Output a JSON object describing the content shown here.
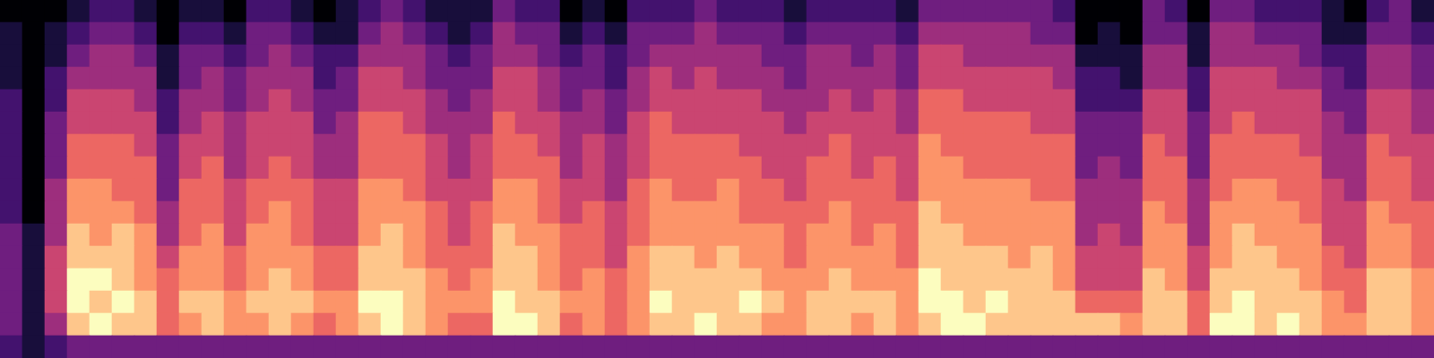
{
  "chart_data": {
    "type": "heatmap",
    "tick_labels": false,
    "cells": [
      [
        2,
        3,
        3,
        3,
        3,
        3,
        2,
        2,
        2,
        2,
        2,
        2,
        1,
        1,
        1,
        0
      ],
      [
        1,
        1,
        1,
        1,
        1,
        1,
        0,
        0,
        0,
        0,
        0,
        0,
        0,
        0,
        0,
        0
      ],
      [
        2,
        4,
        5,
        5,
        5,
        4,
        4,
        4,
        3,
        3,
        3,
        2,
        2,
        1,
        1,
        0
      ],
      [
        3,
        8,
        9,
        9,
        8,
        8,
        7,
        7,
        6,
        6,
        5,
        5,
        4,
        3,
        2,
        1
      ],
      [
        3,
        9,
        8,
        9,
        8,
        7,
        7,
        7,
        6,
        6,
        5,
        5,
        4,
        4,
        3,
        2
      ],
      [
        3,
        8,
        9,
        8,
        8,
        8,
        7,
        6,
        6,
        6,
        5,
        5,
        4,
        4,
        3,
        2
      ],
      [
        3,
        8,
        8,
        7,
        7,
        7,
        6,
        6,
        6,
        5,
        5,
        4,
        4,
        3,
        2,
        1
      ],
      [
        3,
        6,
        6,
        6,
        5,
        4,
        4,
        3,
        3,
        3,
        2,
        2,
        1,
        1,
        0,
        0
      ],
      [
        3,
        7,
        8,
        7,
        7,
        6,
        6,
        6,
        5,
        5,
        4,
        4,
        3,
        3,
        2,
        1
      ],
      [
        3,
        8,
        8,
        7,
        7,
        7,
        6,
        6,
        6,
        5,
        5,
        4,
        4,
        3,
        2,
        1
      ],
      [
        3,
        7,
        7,
        6,
        6,
        5,
        5,
        5,
        4,
        4,
        4,
        3,
        3,
        2,
        1,
        0
      ],
      [
        3,
        7,
        8,
        7,
        7,
        7,
        6,
        6,
        5,
        5,
        5,
        4,
        4,
        3,
        3,
        2
      ],
      [
        3,
        8,
        8,
        8,
        7,
        7,
        7,
        6,
        6,
        5,
        5,
        5,
        4,
        4,
        3,
        2
      ],
      [
        3,
        7,
        8,
        7,
        7,
        6,
        6,
        6,
        5,
        5,
        5,
        4,
        4,
        3,
        2,
        1
      ],
      [
        3,
        6,
        7,
        6,
        6,
        5,
        5,
        5,
        4,
        4,
        3,
        3,
        2,
        2,
        1,
        0
      ],
      [
        3,
        7,
        7,
        6,
        6,
        5,
        5,
        5,
        4,
        4,
        4,
        3,
        3,
        2,
        1,
        1
      ],
      [
        3,
        8,
        9,
        8,
        8,
        7,
        7,
        7,
        6,
        6,
        6,
        5,
        5,
        4,
        3,
        2
      ],
      [
        3,
        9,
        9,
        8,
        8,
        8,
        7,
        7,
        6,
        6,
        6,
        5,
        5,
        4,
        4,
        3
      ],
      [
        3,
        8,
        8,
        8,
        7,
        7,
        7,
        6,
        6,
        6,
        5,
        5,
        4,
        4,
        3,
        2
      ],
      [
        3,
        7,
        7,
        7,
        6,
        6,
        6,
        5,
        5,
        5,
        4,
        4,
        3,
        3,
        2,
        1
      ],
      [
        3,
        6,
        7,
        6,
        6,
        5,
        5,
        5,
        4,
        4,
        4,
        3,
        3,
        2,
        1,
        1
      ],
      [
        3,
        6,
        7,
        7,
        6,
        6,
        6,
        5,
        5,
        5,
        4,
        4,
        3,
        3,
        2,
        1
      ],
      [
        3,
        9,
        9,
        8,
        8,
        8,
        7,
        7,
        6,
        6,
        6,
        5,
        5,
        4,
        4,
        3
      ],
      [
        3,
        9,
        8,
        8,
        8,
        7,
        7,
        7,
        6,
        6,
        5,
        5,
        5,
        4,
        3,
        2
      ],
      [
        3,
        8,
        8,
        7,
        7,
        7,
        6,
        6,
        6,
        5,
        5,
        4,
        4,
        3,
        3,
        2
      ],
      [
        3,
        6,
        7,
        6,
        6,
        6,
        5,
        5,
        4,
        4,
        4,
        3,
        3,
        2,
        1,
        0
      ],
      [
        3,
        7,
        7,
        7,
        6,
        6,
        6,
        5,
        5,
        5,
        4,
        4,
        3,
        3,
        2,
        1
      ],
      [
        3,
        6,
        6,
        6,
        5,
        5,
        5,
        4,
        4,
        4,
        3,
        3,
        2,
        2,
        1,
        0
      ],
      [
        3,
        7,
        7,
        7,
        7,
        6,
        6,
        6,
        5,
        5,
        5,
        4,
        4,
        3,
        3,
        2
      ],
      [
        3,
        8,
        9,
        8,
        8,
        7,
        7,
        7,
        6,
        6,
        6,
        5,
        5,
        4,
        3,
        2
      ],
      [
        3,
        8,
        8,
        8,
        8,
        7,
        7,
        6,
        6,
        6,
        5,
        5,
        4,
        4,
        3,
        2
      ],
      [
        3,
        9,
        8,
        8,
        7,
        7,
        7,
        6,
        6,
        6,
        5,
        5,
        5,
        4,
        4,
        3
      ],
      [
        3,
        8,
        8,
        8,
        8,
        7,
        7,
        7,
        6,
        6,
        5,
        5,
        4,
        4,
        3,
        2
      ],
      [
        3,
        8,
        9,
        8,
        7,
        7,
        6,
        6,
        6,
        5,
        5,
        5,
        4,
        4,
        3,
        2
      ],
      [
        3,
        7,
        8,
        7,
        7,
        7,
        6,
        6,
        5,
        5,
        5,
        4,
        4,
        3,
        3,
        2
      ],
      [
        3,
        7,
        7,
        7,
        6,
        6,
        6,
        5,
        5,
        5,
        4,
        4,
        3,
        3,
        2,
        1
      ],
      [
        3,
        8,
        8,
        7,
        7,
        7,
        6,
        6,
        6,
        5,
        5,
        4,
        4,
        4,
        3,
        2
      ],
      [
        3,
        8,
        8,
        8,
        7,
        7,
        7,
        6,
        6,
        6,
        5,
        5,
        4,
        4,
        3,
        2
      ],
      [
        3,
        7,
        8,
        7,
        7,
        6,
        6,
        6,
        5,
        5,
        5,
        4,
        4,
        3,
        3,
        2
      ],
      [
        3,
        8,
        8,
        7,
        7,
        7,
        6,
        6,
        6,
        5,
        5,
        5,
        4,
        4,
        3,
        2
      ],
      [
        3,
        7,
        7,
        7,
        6,
        6,
        6,
        5,
        5,
        5,
        4,
        4,
        3,
        3,
        2,
        1
      ],
      [
        3,
        8,
        9,
        9,
        8,
        8,
        8,
        7,
        7,
        7,
        6,
        6,
        5,
        5,
        4,
        3
      ],
      [
        3,
        9,
        9,
        8,
        8,
        8,
        7,
        7,
        7,
        6,
        6,
        6,
        5,
        5,
        4,
        3
      ],
      [
        3,
        9,
        8,
        8,
        8,
        7,
        7,
        7,
        6,
        6,
        6,
        5,
        5,
        4,
        4,
        3
      ],
      [
        3,
        8,
        9,
        8,
        8,
        7,
        7,
        7,
        6,
        6,
        6,
        5,
        5,
        4,
        4,
        3
      ],
      [
        3,
        8,
        8,
        8,
        7,
        7,
        7,
        7,
        6,
        6,
        6,
        5,
        5,
        4,
        4,
        3
      ],
      [
        3,
        8,
        8,
        8,
        8,
        7,
        7,
        6,
        6,
        6,
        5,
        5,
        5,
        4,
        3,
        3
      ],
      [
        3,
        8,
        8,
        7,
        7,
        7,
        7,
        6,
        6,
        6,
        5,
        5,
        4,
        4,
        3,
        2
      ],
      [
        3,
        8,
        6,
        5,
        5,
        4,
        4,
        4,
        3,
        3,
        3,
        2,
        2,
        1,
        0,
        0
      ],
      [
        3,
        8,
        6,
        5,
        5,
        5,
        4,
        4,
        4,
        3,
        3,
        2,
        2,
        1,
        1,
        0
      ],
      [
        3,
        7,
        6,
        5,
        5,
        4,
        4,
        4,
        3,
        3,
        3,
        2,
        1,
        1,
        0,
        0
      ],
      [
        3,
        8,
        8,
        8,
        7,
        7,
        7,
        6,
        6,
        6,
        5,
        5,
        4,
        4,
        3,
        3
      ],
      [
        3,
        8,
        8,
        7,
        7,
        7,
        6,
        6,
        6,
        5,
        5,
        5,
        4,
        4,
        3,
        2
      ],
      [
        3,
        6,
        6,
        5,
        5,
        4,
        4,
        4,
        3,
        3,
        3,
        2,
        2,
        1,
        1,
        0
      ],
      [
        3,
        9,
        8,
        8,
        7,
        7,
        7,
        6,
        6,
        6,
        5,
        5,
        5,
        4,
        4,
        3
      ],
      [
        3,
        9,
        9,
        8,
        8,
        8,
        7,
        7,
        6,
        6,
        6,
        5,
        5,
        4,
        4,
        3
      ],
      [
        3,
        8,
        8,
        8,
        8,
        7,
        7,
        7,
        6,
        6,
        5,
        5,
        5,
        4,
        3,
        2
      ],
      [
        3,
        9,
        8,
        8,
        7,
        7,
        7,
        6,
        6,
        6,
        5,
        5,
        4,
        4,
        3,
        2
      ],
      [
        3,
        8,
        8,
        7,
        7,
        7,
        6,
        6,
        6,
        5,
        5,
        5,
        4,
        3,
        3,
        2
      ],
      [
        3,
        7,
        7,
        6,
        6,
        5,
        5,
        5,
        4,
        4,
        4,
        3,
        3,
        2,
        1,
        1
      ],
      [
        3,
        7,
        6,
        6,
        5,
        5,
        5,
        4,
        4,
        4,
        3,
        3,
        2,
        2,
        1,
        0
      ],
      [
        3,
        8,
        8,
        8,
        7,
        7,
        7,
        6,
        6,
        6,
        5,
        5,
        4,
        4,
        3,
        2
      ],
      [
        3,
        8,
        8,
        8,
        7,
        7,
        6,
        6,
        6,
        5,
        5,
        5,
        4,
        4,
        3,
        3
      ],
      [
        3,
        7,
        7,
        7,
        6,
        6,
        6,
        5,
        5,
        5,
        4,
        4,
        3,
        3,
        2,
        1
      ]
    ]
  }
}
